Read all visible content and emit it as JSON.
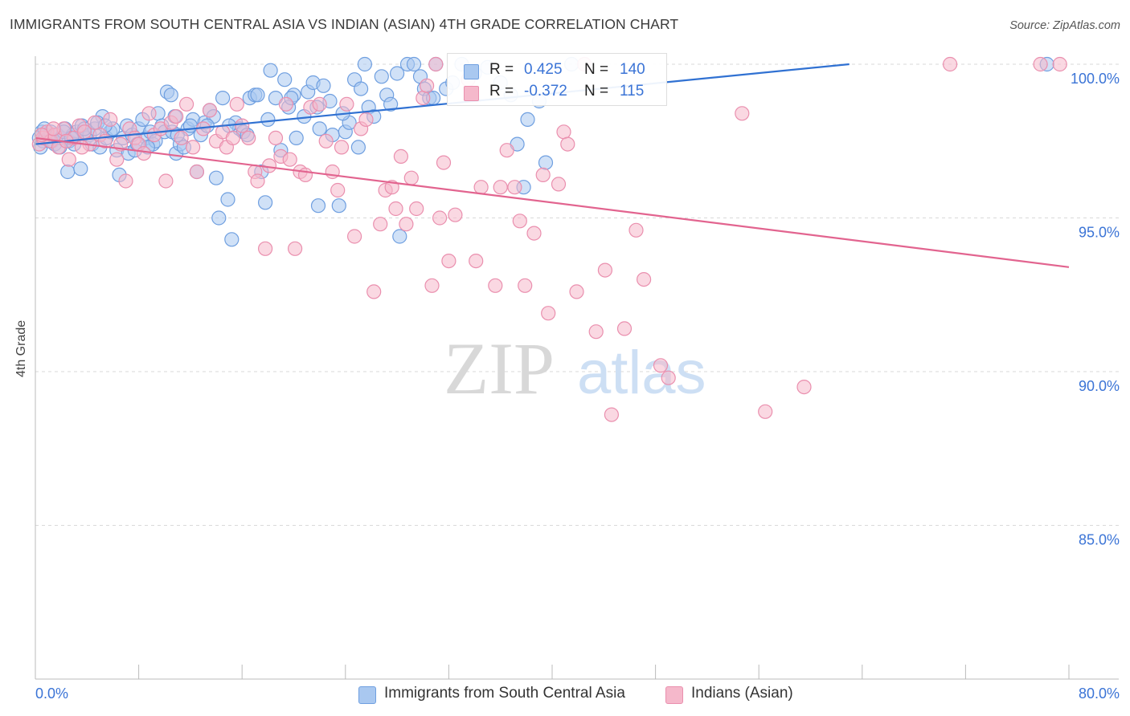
{
  "title": "IMMIGRANTS FROM SOUTH CENTRAL ASIA VS INDIAN (ASIAN) 4TH GRADE CORRELATION CHART",
  "source": "Source: ZipAtlas.com",
  "watermark": {
    "zip": "ZIP",
    "atlas": "atlas"
  },
  "legend": {
    "series1": {
      "r_label": "R =",
      "r_value": "0.425",
      "n_label": "N =",
      "n_value": "140"
    },
    "series2": {
      "r_label": "R =",
      "r_value": "-0.372",
      "n_label": "N =",
      "n_value": "115"
    }
  },
  "colors": {
    "blue_fill": "#a9c8f0",
    "blue_stroke": "#6f9fe0",
    "blue_line": "#3071d2",
    "pink_fill": "#f5b8cb",
    "pink_stroke": "#ea8fae",
    "pink_line": "#e2648f",
    "tick_label": "#3b74d6",
    "grid": "#d9d9d9"
  },
  "chart_data": {
    "type": "scatter",
    "title": "IMMIGRANTS FROM SOUTH CENTRAL ASIA VS INDIAN (ASIAN) 4TH GRADE CORRELATION CHART",
    "xlabel": "",
    "ylabel": "4th Grade",
    "xlim": [
      0,
      80
    ],
    "ylim": [
      80.5,
      100.8
    ],
    "x_tick_labels": [
      "0.0%",
      "80.0%"
    ],
    "y_ticks": [
      100,
      95,
      90,
      85
    ],
    "y_tick_labels": [
      "100.0%",
      "95.0%",
      "90.0%",
      "85.0%"
    ],
    "grid": "horizontal dashed",
    "legend_position": "top-center",
    "series": [
      {
        "name": "Immigrants from South Central Asia",
        "color": "#a9c8f0",
        "trend": {
          "x0": 0,
          "y0": 97.4,
          "x1": 63,
          "y1": 100.0
        },
        "points": [
          [
            0.3,
            97.6
          ],
          [
            0.5,
            97.8
          ],
          [
            0.6,
            97.5
          ],
          [
            0.8,
            97.7
          ],
          [
            1.0,
            97.6
          ],
          [
            1.2,
            97.8
          ],
          [
            1.3,
            97.5
          ],
          [
            1.5,
            97.4
          ],
          [
            1.7,
            97.7
          ],
          [
            2.0,
            97.6
          ],
          [
            2.3,
            97.9
          ],
          [
            2.5,
            96.5
          ],
          [
            2.6,
            97.5
          ],
          [
            2.9,
            97.7
          ],
          [
            3.2,
            97.8
          ],
          [
            3.5,
            96.6
          ],
          [
            3.6,
            98.0
          ],
          [
            3.9,
            97.6
          ],
          [
            4.2,
            97.7
          ],
          [
            4.4,
            97.4
          ],
          [
            4.6,
            97.9
          ],
          [
            5.0,
            97.3
          ],
          [
            5.2,
            98.3
          ],
          [
            5.5,
            97.6
          ],
          [
            5.8,
            97.8
          ],
          [
            6.3,
            97.2
          ],
          [
            6.5,
            96.4
          ],
          [
            6.8,
            97.6
          ],
          [
            7.1,
            98.0
          ],
          [
            7.2,
            97.1
          ],
          [
            7.5,
            97.7
          ],
          [
            7.7,
            97.2
          ],
          [
            8.0,
            97.9
          ],
          [
            8.3,
            98.2
          ],
          [
            8.6,
            97.6
          ],
          [
            8.9,
            97.8
          ],
          [
            9.1,
            97.4
          ],
          [
            9.5,
            98.4
          ],
          [
            9.8,
            98.0
          ],
          [
            10.0,
            97.8
          ],
          [
            10.2,
            99.1
          ],
          [
            10.5,
            99.0
          ],
          [
            10.6,
            97.8
          ],
          [
            10.9,
            97.1
          ],
          [
            11.2,
            97.4
          ],
          [
            11.5,
            97.3
          ],
          [
            11.8,
            97.9
          ],
          [
            12.2,
            98.2
          ],
          [
            12.5,
            96.5
          ],
          [
            12.8,
            97.7
          ],
          [
            13.1,
            98.1
          ],
          [
            13.5,
            98.5
          ],
          [
            13.8,
            98.3
          ],
          [
            14.0,
            96.3
          ],
          [
            14.2,
            95.0
          ],
          [
            14.5,
            98.9
          ],
          [
            14.9,
            95.6
          ],
          [
            15.2,
            94.3
          ],
          [
            15.5,
            98.1
          ],
          [
            15.8,
            97.9
          ],
          [
            16.1,
            97.8
          ],
          [
            16.6,
            98.9
          ],
          [
            17.0,
            99.0
          ],
          [
            17.5,
            96.5
          ],
          [
            17.8,
            95.5
          ],
          [
            18.2,
            99.8
          ],
          [
            18.6,
            98.9
          ],
          [
            19.0,
            97.2
          ],
          [
            19.3,
            99.5
          ],
          [
            19.6,
            98.6
          ],
          [
            20.0,
            99.0
          ],
          [
            20.2,
            97.6
          ],
          [
            20.8,
            98.3
          ],
          [
            21.1,
            99.1
          ],
          [
            21.5,
            99.4
          ],
          [
            21.8,
            98.6
          ],
          [
            21.9,
            95.4
          ],
          [
            22.3,
            99.3
          ],
          [
            22.8,
            98.8
          ],
          [
            23.0,
            97.7
          ],
          [
            23.5,
            95.4
          ],
          [
            24.0,
            97.8
          ],
          [
            24.3,
            98.1
          ],
          [
            24.7,
            99.5
          ],
          [
            25.0,
            97.3
          ],
          [
            25.5,
            100.0
          ],
          [
            25.8,
            98.6
          ],
          [
            26.2,
            98.3
          ],
          [
            26.8,
            99.6
          ],
          [
            27.2,
            99.0
          ],
          [
            28.0,
            99.7
          ],
          [
            28.2,
            94.4
          ],
          [
            28.8,
            100.0
          ],
          [
            29.3,
            100.0
          ],
          [
            29.8,
            99.6
          ],
          [
            30.1,
            99.2
          ],
          [
            30.5,
            98.9
          ],
          [
            31.0,
            100.0
          ],
          [
            31.8,
            99.2
          ],
          [
            32.3,
            99.4
          ],
          [
            33.0,
            100.0
          ],
          [
            34.0,
            99.7
          ],
          [
            35.0,
            99.9
          ],
          [
            36.0,
            99.4
          ],
          [
            36.8,
            99.0
          ],
          [
            37.3,
            97.4
          ],
          [
            37.8,
            96.0
          ],
          [
            38.1,
            98.2
          ],
          [
            39.0,
            98.8
          ],
          [
            39.5,
            96.8
          ],
          [
            41.5,
            100.0
          ],
          [
            78.3,
            100.0
          ],
          [
            0.4,
            97.3
          ],
          [
            1.1,
            97.5
          ],
          [
            2.2,
            97.8
          ],
          [
            3.0,
            97.4
          ],
          [
            4.8,
            98.1
          ],
          [
            6.0,
            97.9
          ],
          [
            9.3,
            97.5
          ],
          [
            11.0,
            97.7
          ],
          [
            12.0,
            98.0
          ],
          [
            13.3,
            98.0
          ],
          [
            16.4,
            97.7
          ],
          [
            18.0,
            98.2
          ],
          [
            19.8,
            98.9
          ],
          [
            22.0,
            97.9
          ],
          [
            23.8,
            98.4
          ],
          [
            25.2,
            99.2
          ],
          [
            27.5,
            98.7
          ],
          [
            30.8,
            98.9
          ],
          [
            0.7,
            97.9
          ],
          [
            1.9,
            97.3
          ],
          [
            2.8,
            97.6
          ],
          [
            3.8,
            97.9
          ],
          [
            5.4,
            98.0
          ],
          [
            7.9,
            97.4
          ],
          [
            8.7,
            97.3
          ],
          [
            10.8,
            98.3
          ],
          [
            15.0,
            98.0
          ],
          [
            17.2,
            99.0
          ]
        ]
      },
      {
        "name": "Indians (Asian)",
        "color": "#f5b8cb",
        "trend": {
          "x0": 0,
          "y0": 97.6,
          "x1": 80,
          "y1": 93.4
        },
        "points": [
          [
            0.3,
            97.4
          ],
          [
            0.6,
            97.6
          ],
          [
            0.9,
            97.8
          ],
          [
            1.2,
            97.5
          ],
          [
            1.5,
            97.7
          ],
          [
            1.8,
            97.3
          ],
          [
            2.2,
            97.9
          ],
          [
            2.6,
            96.9
          ],
          [
            3.0,
            97.6
          ],
          [
            3.4,
            98.0
          ],
          [
            3.8,
            97.8
          ],
          [
            4.2,
            97.4
          ],
          [
            4.6,
            98.1
          ],
          [
            5.0,
            97.7
          ],
          [
            5.4,
            97.5
          ],
          [
            5.8,
            98.2
          ],
          [
            6.3,
            96.9
          ],
          [
            6.6,
            97.4
          ],
          [
            7.0,
            96.2
          ],
          [
            7.3,
            97.9
          ],
          [
            7.7,
            97.6
          ],
          [
            8.0,
            97.4
          ],
          [
            8.4,
            97.1
          ],
          [
            8.8,
            98.4
          ],
          [
            9.2,
            97.7
          ],
          [
            9.7,
            97.9
          ],
          [
            10.1,
            96.2
          ],
          [
            10.5,
            98.1
          ],
          [
            10.9,
            98.3
          ],
          [
            11.3,
            97.6
          ],
          [
            11.7,
            98.7
          ],
          [
            12.2,
            97.3
          ],
          [
            12.5,
            96.5
          ],
          [
            13.0,
            97.9
          ],
          [
            13.5,
            98.5
          ],
          [
            14.0,
            97.5
          ],
          [
            14.5,
            97.8
          ],
          [
            14.8,
            97.3
          ],
          [
            15.3,
            97.6
          ],
          [
            15.6,
            98.7
          ],
          [
            16.0,
            98.0
          ],
          [
            16.5,
            97.6
          ],
          [
            17.0,
            96.5
          ],
          [
            17.2,
            96.2
          ],
          [
            17.8,
            94.0
          ],
          [
            18.1,
            96.7
          ],
          [
            18.6,
            97.6
          ],
          [
            19.0,
            97.0
          ],
          [
            19.4,
            98.7
          ],
          [
            19.7,
            96.9
          ],
          [
            20.1,
            94.0
          ],
          [
            20.5,
            96.5
          ],
          [
            20.9,
            96.4
          ],
          [
            21.3,
            98.6
          ],
          [
            22.0,
            98.7
          ],
          [
            22.5,
            97.5
          ],
          [
            23.0,
            96.5
          ],
          [
            23.4,
            95.9
          ],
          [
            23.7,
            97.3
          ],
          [
            24.1,
            98.7
          ],
          [
            24.7,
            94.4
          ],
          [
            25.2,
            97.9
          ],
          [
            25.6,
            98.2
          ],
          [
            26.2,
            92.6
          ],
          [
            26.7,
            94.8
          ],
          [
            27.1,
            95.9
          ],
          [
            27.6,
            96.0
          ],
          [
            27.9,
            95.3
          ],
          [
            28.3,
            97.0
          ],
          [
            28.7,
            94.8
          ],
          [
            29.1,
            96.3
          ],
          [
            29.5,
            95.3
          ],
          [
            30.0,
            98.9
          ],
          [
            30.3,
            99.3
          ],
          [
            30.7,
            92.8
          ],
          [
            31.0,
            100.0
          ],
          [
            31.3,
            95.0
          ],
          [
            31.6,
            96.8
          ],
          [
            32.0,
            93.6
          ],
          [
            32.5,
            95.1
          ],
          [
            33.5,
            99.5
          ],
          [
            34.1,
            93.6
          ],
          [
            34.5,
            96.0
          ],
          [
            35.6,
            92.8
          ],
          [
            36.0,
            96.0
          ],
          [
            36.5,
            97.2
          ],
          [
            37.1,
            96.0
          ],
          [
            37.5,
            94.9
          ],
          [
            37.9,
            92.8
          ],
          [
            38.6,
            94.5
          ],
          [
            39.3,
            96.4
          ],
          [
            39.7,
            91.9
          ],
          [
            40.5,
            96.1
          ],
          [
            40.9,
            97.8
          ],
          [
            41.2,
            97.4
          ],
          [
            41.9,
            92.6
          ],
          [
            42.5,
            100.0
          ],
          [
            43.4,
            91.3
          ],
          [
            44.1,
            93.3
          ],
          [
            44.6,
            88.6
          ],
          [
            45.6,
            91.4
          ],
          [
            46.5,
            94.6
          ],
          [
            47.1,
            93.0
          ],
          [
            48.4,
            90.2
          ],
          [
            49.0,
            89.8
          ],
          [
            54.7,
            98.4
          ],
          [
            56.5,
            88.7
          ],
          [
            59.5,
            89.5
          ],
          [
            70.8,
            100.0
          ],
          [
            77.8,
            100.0
          ],
          [
            79.3,
            100.0
          ],
          [
            0.5,
            97.7
          ],
          [
            1.4,
            97.9
          ],
          [
            2.4,
            97.5
          ],
          [
            3.6,
            97.3
          ]
        ]
      }
    ]
  },
  "bottom_legend": {
    "series1_label": "Immigrants from South Central Asia",
    "series2_label": "Indians (Asian)"
  }
}
